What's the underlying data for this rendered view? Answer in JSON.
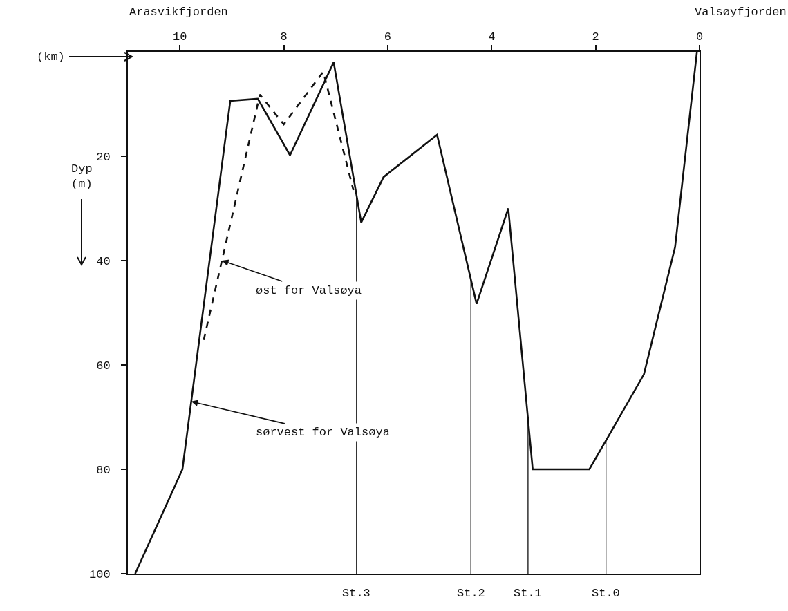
{
  "chart_data": {
    "type": "line",
    "xlabel": "(km)",
    "ylabel": "Dyp\n(m)",
    "x": [
      10.86,
      9.95,
      9.03,
      8.5,
      7.88,
      7.04,
      6.51,
      6.08,
      5.05,
      4.29,
      3.68,
      3.21,
      2.12,
      1.76,
      1.07,
      0.47,
      0.05
    ],
    "series": [
      {
        "color": "#111111",
        "line_style": "solid",
        "values": [
          100,
          80,
          9.4,
          9,
          19.8,
          2,
          32.7,
          24,
          15.9,
          48.3,
          30,
          80,
          80,
          73.8,
          61.8,
          37.4,
          0
        ]
      },
      {
        "color": "#111111",
        "line_style": "dashed",
        "x": [
          9.54,
          8.46,
          8.0,
          7.24,
          6.66
        ],
        "values": [
          55.2,
          8.2,
          13.9,
          3.8,
          26.5
        ]
      }
    ],
    "xlim": [
      11,
      0
    ],
    "xticks": [
      10,
      8,
      6,
      4,
      2,
      0
    ],
    "ylim": [
      100,
      0
    ],
    "yticks": [
      20,
      40,
      60,
      80,
      100
    ],
    "marker": "none",
    "ref_lines": [
      {
        "axis": "x",
        "value": 6.6,
        "label": "St.3"
      },
      {
        "axis": "x",
        "value": 4.4,
        "label": "St.2"
      },
      {
        "axis": "x",
        "value": 3.3,
        "label": "St.1"
      },
      {
        "axis": "x",
        "value": 1.8,
        "label": "St.0"
      }
    ],
    "annotations": [
      "Arasvikfjorden",
      "Valsøyfjorden",
      {
        "text": "øst for Valsøya",
        "x": 9.19,
        "y": 40
      },
      {
        "text": "sørvest for Valsøya",
        "x": 9.78,
        "y": 67
      }
    ]
  }
}
